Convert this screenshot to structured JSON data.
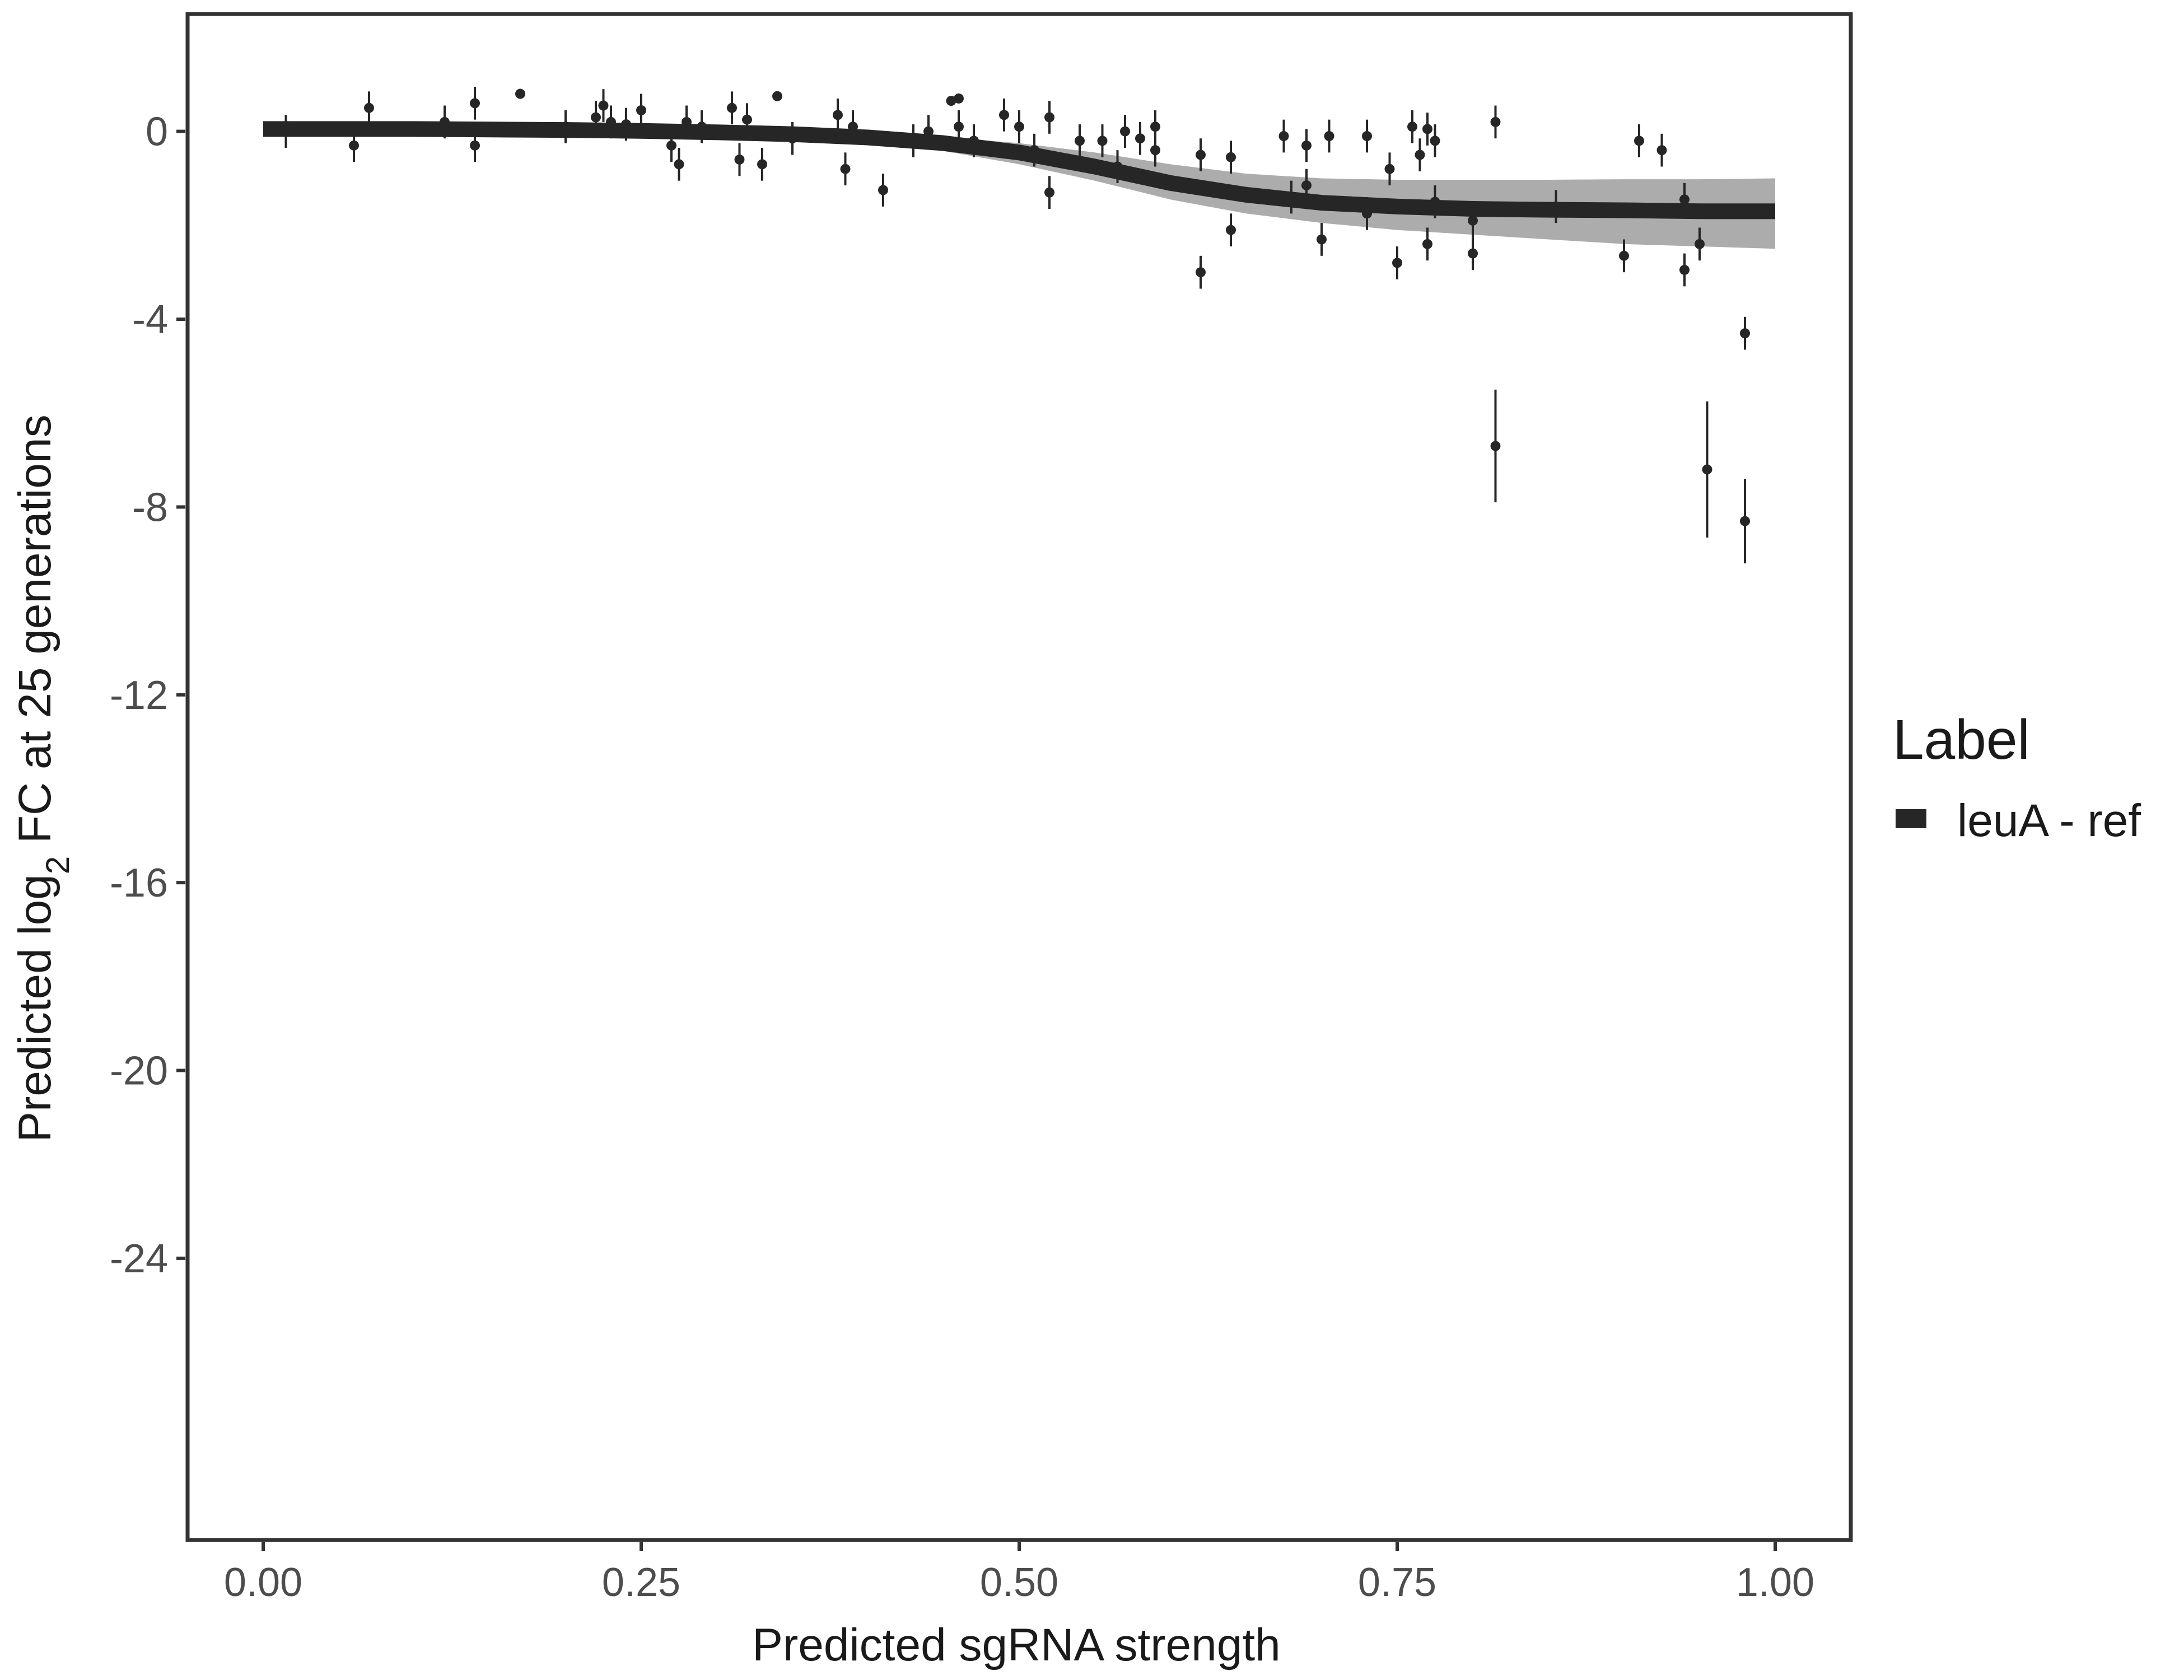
{
  "chart_data": {
    "type": "scatter",
    "xlabel": "Predicted sgRNA strength",
    "ylabel_parts": {
      "pre": "Predicted  log",
      "sub": "2",
      "post": " FC at 25 generations"
    },
    "xlim": [
      -0.05,
      1.05
    ],
    "ylim": [
      -30.0,
      2.5
    ],
    "x_ticks": [
      0,
      0.25,
      0.5,
      0.75,
      1.0
    ],
    "x_tick_labels": [
      "0.00",
      "0.25",
      "0.50",
      "0.75",
      "1.00"
    ],
    "y_ticks": [
      0,
      -4,
      -8,
      -12,
      -16,
      -20,
      -24
    ],
    "y_tick_labels": [
      "0",
      "-4",
      "-8",
      "-12",
      "-16",
      "-20",
      "-24"
    ],
    "grid": false,
    "legend": {
      "title": "Label",
      "position": "right",
      "entries": [
        {
          "label": "leuA - ref",
          "color": "#262626"
        }
      ]
    },
    "colors": {
      "fit_line": "#262626",
      "ribbon": "#9e9e9e",
      "points": "#262626",
      "panel_border": "#333333"
    },
    "fit_curve": {
      "x": [
        0,
        0.05,
        0.1,
        0.15,
        0.2,
        0.25,
        0.3,
        0.35,
        0.4,
        0.45,
        0.5,
        0.55,
        0.6,
        0.65,
        0.7,
        0.75,
        0.8,
        0.85,
        0.9,
        0.95,
        1.0
      ],
      "y": [
        0.05,
        0.05,
        0.05,
        0.04,
        0.03,
        0.01,
        -0.02,
        -0.06,
        -0.13,
        -0.25,
        -0.45,
        -0.75,
        -1.1,
        -1.35,
        -1.52,
        -1.6,
        -1.65,
        -1.67,
        -1.68,
        -1.7,
        -1.7
      ],
      "upper": [
        0.1,
        0.1,
        0.1,
        0.09,
        0.08,
        0.06,
        0.04,
        0.0,
        -0.05,
        -0.12,
        -0.25,
        -0.45,
        -0.7,
        -0.9,
        -1.0,
        -1.03,
        -1.03,
        -1.03,
        -1.02,
        -1.02,
        -1.0
      ],
      "lower": [
        0.0,
        0.0,
        0.0,
        -0.01,
        -0.02,
        -0.04,
        -0.08,
        -0.14,
        -0.25,
        -0.42,
        -0.7,
        -1.05,
        -1.45,
        -1.75,
        -1.95,
        -2.1,
        -2.2,
        -2.3,
        -2.4,
        -2.45,
        -2.5
      ]
    },
    "points": [
      {
        "x": 0.015,
        "y": 0.0,
        "err": 0.35
      },
      {
        "x": 0.06,
        "y": -0.3,
        "err": 0.35
      },
      {
        "x": 0.07,
        "y": 0.5,
        "err": 0.35
      },
      {
        "x": 0.12,
        "y": 0.2,
        "err": 0.35
      },
      {
        "x": 0.14,
        "y": 0.6,
        "err": 0.35
      },
      {
        "x": 0.14,
        "y": -0.3,
        "err": 0.35
      },
      {
        "x": 0.17,
        "y": 0.8,
        "err": 0.1
      },
      {
        "x": 0.2,
        "y": 0.1,
        "err": 0.35
      },
      {
        "x": 0.22,
        "y": 0.3,
        "err": 0.35
      },
      {
        "x": 0.225,
        "y": 0.55,
        "err": 0.35
      },
      {
        "x": 0.23,
        "y": 0.2,
        "err": 0.35
      },
      {
        "x": 0.24,
        "y": 0.15,
        "err": 0.35
      },
      {
        "x": 0.25,
        "y": 0.45,
        "err": 0.35
      },
      {
        "x": 0.27,
        "y": -0.3,
        "err": 0.35
      },
      {
        "x": 0.275,
        "y": -0.7,
        "err": 0.35
      },
      {
        "x": 0.28,
        "y": 0.2,
        "err": 0.35
      },
      {
        "x": 0.29,
        "y": 0.1,
        "err": 0.35
      },
      {
        "x": 0.31,
        "y": 0.5,
        "err": 0.35
      },
      {
        "x": 0.315,
        "y": -0.6,
        "err": 0.35
      },
      {
        "x": 0.32,
        "y": 0.25,
        "err": 0.35
      },
      {
        "x": 0.33,
        "y": -0.7,
        "err": 0.35
      },
      {
        "x": 0.34,
        "y": 0.75,
        "err": 0.1
      },
      {
        "x": 0.35,
        "y": -0.15,
        "err": 0.35
      },
      {
        "x": 0.38,
        "y": 0.35,
        "err": 0.35
      },
      {
        "x": 0.385,
        "y": -0.8,
        "err": 0.35
      },
      {
        "x": 0.39,
        "y": 0.1,
        "err": 0.35
      },
      {
        "x": 0.41,
        "y": -1.25,
        "err": 0.35
      },
      {
        "x": 0.43,
        "y": -0.2,
        "err": 0.35
      },
      {
        "x": 0.44,
        "y": 0.0,
        "err": 0.35
      },
      {
        "x": 0.455,
        "y": 0.65,
        "err": 0.1
      },
      {
        "x": 0.46,
        "y": 0.7,
        "err": 0.1
      },
      {
        "x": 0.46,
        "y": 0.1,
        "err": 0.35
      },
      {
        "x": 0.47,
        "y": -0.2,
        "err": 0.35
      },
      {
        "x": 0.49,
        "y": 0.35,
        "err": 0.35
      },
      {
        "x": 0.5,
        "y": 0.1,
        "err": 0.35
      },
      {
        "x": 0.51,
        "y": -0.4,
        "err": 0.35
      },
      {
        "x": 0.52,
        "y": -1.3,
        "err": 0.35
      },
      {
        "x": 0.52,
        "y": 0.3,
        "err": 0.35
      },
      {
        "x": 0.54,
        "y": -0.2,
        "err": 0.35
      },
      {
        "x": 0.555,
        "y": -0.2,
        "err": 0.35
      },
      {
        "x": 0.565,
        "y": -0.75,
        "err": 0.35
      },
      {
        "x": 0.57,
        "y": 0.0,
        "err": 0.35
      },
      {
        "x": 0.58,
        "y": -0.15,
        "err": 0.35
      },
      {
        "x": 0.59,
        "y": 0.1,
        "err": 0.35
      },
      {
        "x": 0.59,
        "y": -0.4,
        "err": 0.35
      },
      {
        "x": 0.62,
        "y": -3.0,
        "err": 0.35
      },
      {
        "x": 0.62,
        "y": -0.5,
        "err": 0.35
      },
      {
        "x": 0.64,
        "y": -2.1,
        "err": 0.35
      },
      {
        "x": 0.64,
        "y": -0.55,
        "err": 0.35
      },
      {
        "x": 0.675,
        "y": -0.1,
        "err": 0.35
      },
      {
        "x": 0.68,
        "y": -1.4,
        "err": 0.35
      },
      {
        "x": 0.69,
        "y": -0.3,
        "err": 0.35
      },
      {
        "x": 0.69,
        "y": -1.15,
        "err": 0.35
      },
      {
        "x": 0.7,
        "y": -2.3,
        "err": 0.35
      },
      {
        "x": 0.705,
        "y": -0.1,
        "err": 0.35
      },
      {
        "x": 0.73,
        "y": -0.1,
        "err": 0.35
      },
      {
        "x": 0.73,
        "y": -1.75,
        "err": 0.35
      },
      {
        "x": 0.745,
        "y": -0.8,
        "err": 0.35
      },
      {
        "x": 0.75,
        "y": -2.8,
        "err": 0.35
      },
      {
        "x": 0.76,
        "y": 0.1,
        "err": 0.35
      },
      {
        "x": 0.765,
        "y": -0.5,
        "err": 0.35
      },
      {
        "x": 0.77,
        "y": -2.4,
        "err": 0.35
      },
      {
        "x": 0.77,
        "y": 0.05,
        "err": 0.35
      },
      {
        "x": 0.775,
        "y": -0.2,
        "err": 0.35
      },
      {
        "x": 0.775,
        "y": -1.5,
        "err": 0.35
      },
      {
        "x": 0.8,
        "y": -2.6,
        "err": 0.35
      },
      {
        "x": 0.8,
        "y": -1.9,
        "err": 0.35
      },
      {
        "x": 0.815,
        "y": 0.2,
        "err": 0.35
      },
      {
        "x": 0.815,
        "y": -6.7,
        "err": 1.2
      },
      {
        "x": 0.855,
        "y": -1.6,
        "err": 0.35
      },
      {
        "x": 0.9,
        "y": -2.65,
        "err": 0.35
      },
      {
        "x": 0.91,
        "y": -0.2,
        "err": 0.35
      },
      {
        "x": 0.925,
        "y": -0.4,
        "err": 0.35
      },
      {
        "x": 0.94,
        "y": -1.45,
        "err": 0.35
      },
      {
        "x": 0.94,
        "y": -2.95,
        "err": 0.35
      },
      {
        "x": 0.95,
        "y": -2.4,
        "err": 0.35
      },
      {
        "x": 0.955,
        "y": -7.2,
        "err": 1.45
      },
      {
        "x": 0.98,
        "y": -4.3,
        "err": 0.35
      },
      {
        "x": 0.98,
        "y": -8.3,
        "err": 0.9
      }
    ]
  }
}
